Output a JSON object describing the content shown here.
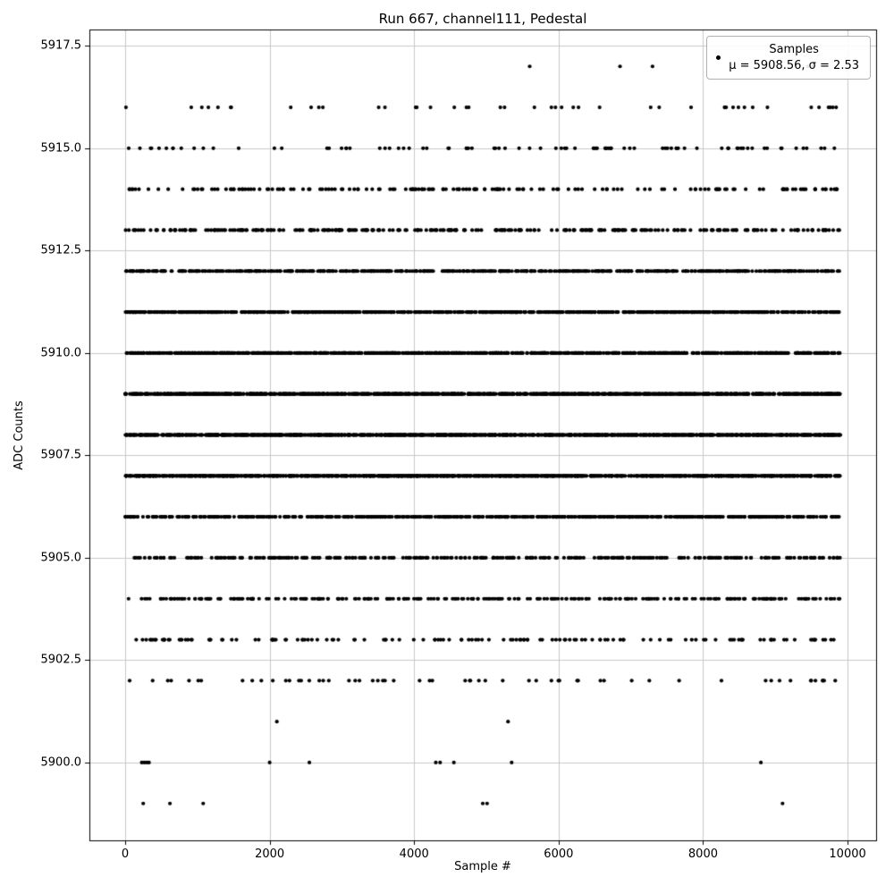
{
  "title": "Run 667, channel111, Pedestal",
  "chart_data": {
    "type": "scatter",
    "title": "Run 667, channel111, Pedestal",
    "xlabel": "Sample #",
    "ylabel": "ADC Counts",
    "xlim": [
      -495,
      10395
    ],
    "ylim": [
      5898.1,
      5917.9
    ],
    "x_ticks": [
      0,
      2000,
      4000,
      6000,
      8000,
      10000
    ],
    "y_ticks": [
      5900.0,
      5902.5,
      5905.0,
      5907.5,
      5910.0,
      5912.5,
      5915.0,
      5917.5
    ],
    "x_range": [
      0,
      9900
    ],
    "grid": true,
    "marker_color": "#000000",
    "grid_color": "#c8c8c8",
    "mu": 5908.56,
    "sigma": 2.53,
    "legend": {
      "label": "Samples",
      "stats": "μ = 5908.56, σ = 2.53",
      "position": "upper right"
    },
    "bands": [
      {
        "adc": 5899,
        "count": 6,
        "x": [
          250,
          620,
          1080,
          4950,
          5010,
          9100
        ]
      },
      {
        "adc": 5900,
        "count": 11,
        "x": [
          230,
          265,
          300,
          330,
          2000,
          2550,
          4300,
          4360,
          4550,
          5350,
          8800
        ]
      },
      {
        "adc": 5901,
        "count": 2,
        "x": [
          2100,
          5300
        ]
      },
      {
        "adc": 5902,
        "count": 60
      },
      {
        "adc": 5903,
        "count": 140
      },
      {
        "adc": 5904,
        "count": 260
      },
      {
        "adc": 5905,
        "count": 340
      },
      {
        "adc": 5906,
        "count": 620
      },
      {
        "adc": 5907,
        "count": 1050
      },
      {
        "adc": 5908,
        "count": 1450
      },
      {
        "adc": 5909,
        "count": 1100
      },
      {
        "adc": 5910,
        "count": 900
      },
      {
        "adc": 5911,
        "count": 800
      },
      {
        "adc": 5912,
        "count": 620
      },
      {
        "adc": 5913,
        "count": 300
      },
      {
        "adc": 5914,
        "count": 170
      },
      {
        "adc": 5915,
        "count": 90
      },
      {
        "adc": 5916,
        "count": 45
      },
      {
        "adc": 5917,
        "count": 5,
        "x": [
          5600,
          6850,
          7300,
          9450,
          9520
        ]
      }
    ]
  }
}
